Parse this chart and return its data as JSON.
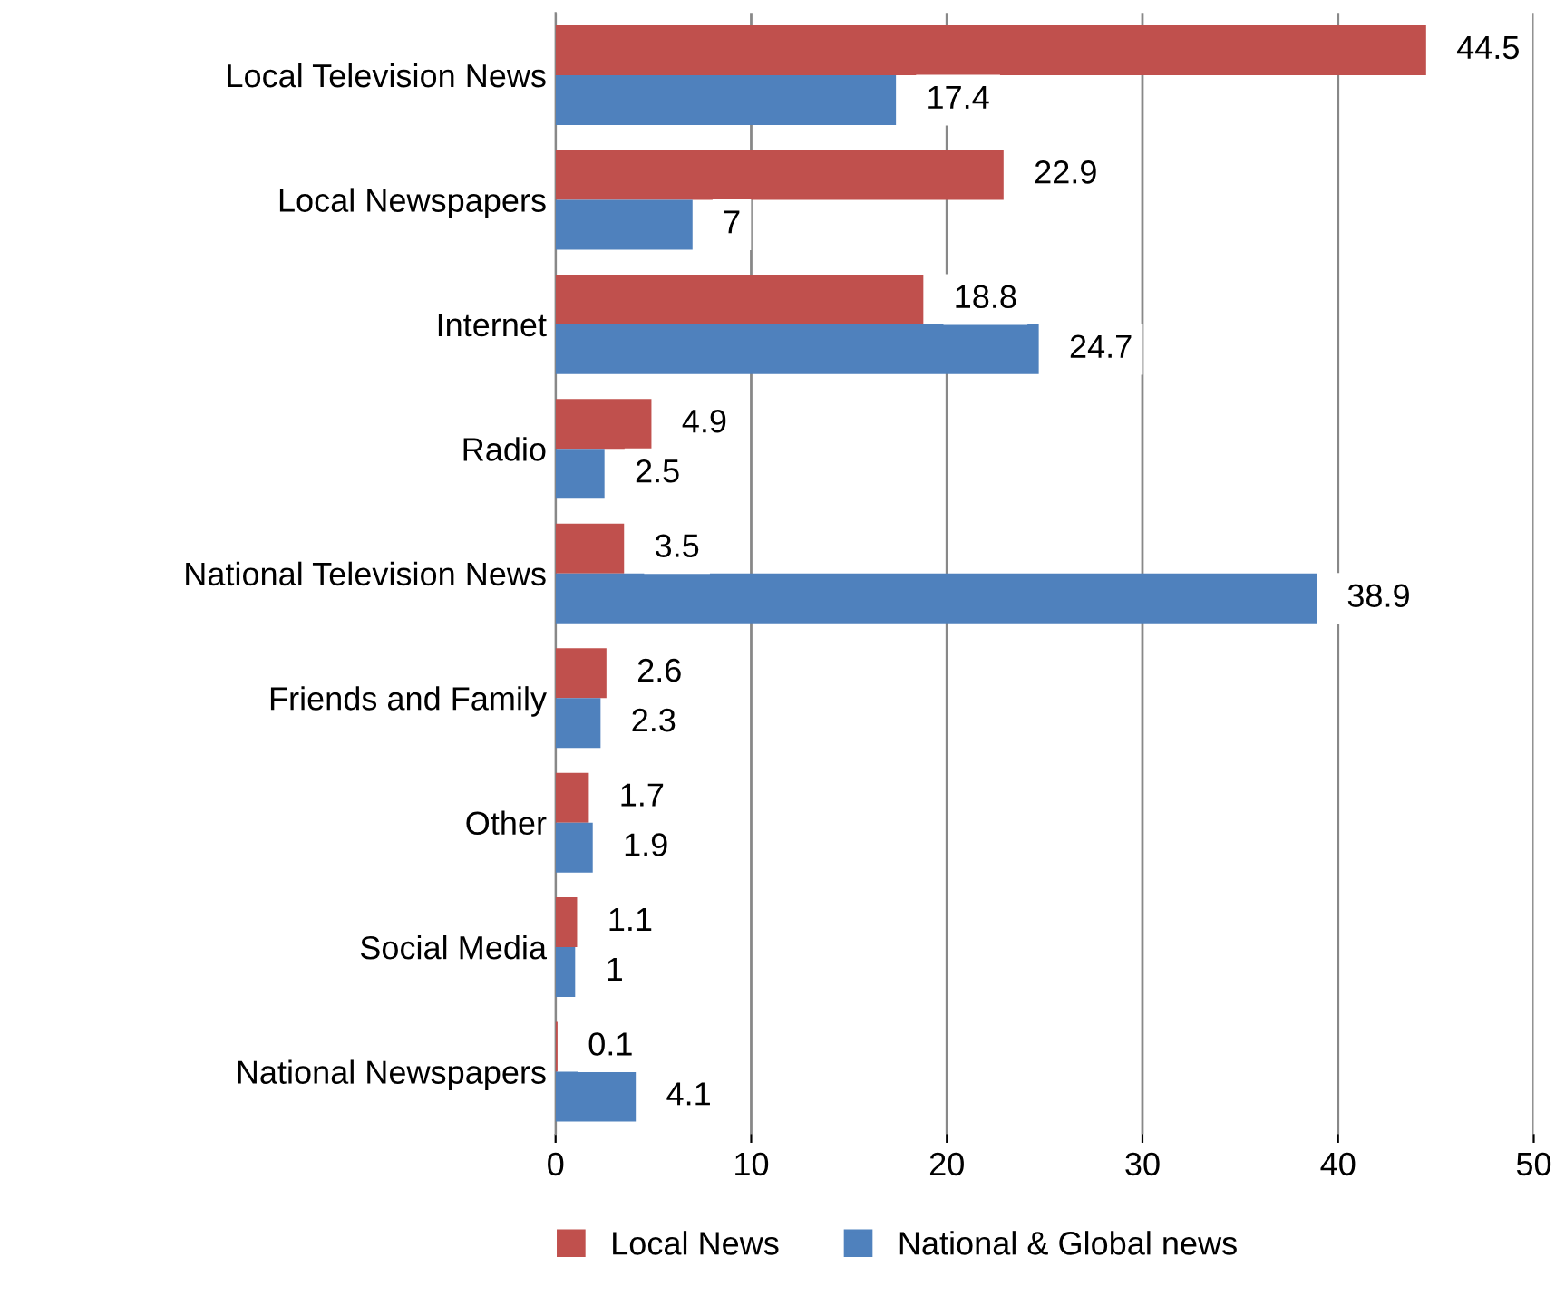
{
  "chart_data": {
    "type": "bar",
    "orientation": "horizontal",
    "categories": [
      "Local Television News",
      "Local Newspapers",
      "Internet",
      "Radio",
      "National Television News",
      "Friends and Family",
      "Other",
      "Social Media",
      "National Newspapers"
    ],
    "series": [
      {
        "name": "Local News",
        "color": "#c0504d",
        "values": [
          44.5,
          22.9,
          18.8,
          4.9,
          3.5,
          2.6,
          1.7,
          1.1,
          0.1
        ]
      },
      {
        "name": "National & Global news",
        "color": "#4f81bd",
        "values": [
          17.4,
          7,
          24.7,
          2.5,
          38.9,
          2.3,
          1.9,
          1,
          4.1
        ]
      }
    ],
    "xlim": [
      0,
      50
    ],
    "xticks": [
      0,
      10,
      20,
      30,
      40,
      50
    ],
    "grid": "x",
    "legend": "bottom",
    "data_labels": true
  }
}
